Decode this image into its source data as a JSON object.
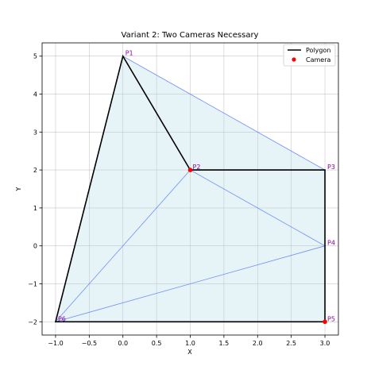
{
  "chart_data": {
    "type": "line",
    "title": "Variant 2: Two Cameras Necessary",
    "xlabel": "X",
    "ylabel": "Y",
    "xlim": [
      -1.2,
      3.2
    ],
    "ylim": [
      -2.35,
      5.35
    ],
    "grid": true,
    "xticks": [
      -1.0,
      -0.5,
      0.0,
      0.5,
      1.0,
      1.5,
      2.0,
      2.5,
      3.0
    ],
    "xtick_labels": [
      "−1.0",
      "−0.5",
      "0.0",
      "0.5",
      "1.0",
      "1.5",
      "2.0",
      "2.5",
      "3.0"
    ],
    "yticks": [
      -2,
      -1,
      0,
      1,
      2,
      3,
      4,
      5
    ],
    "ytick_labels": [
      "−2",
      "−1",
      "0",
      "1",
      "2",
      "3",
      "4",
      "5"
    ],
    "polygon": {
      "name": "Polygon",
      "color": "#000000",
      "points": [
        {
          "label": "P1",
          "x": 0,
          "y": 5
        },
        {
          "label": "P2",
          "x": 1,
          "y": 2
        },
        {
          "label": "P3",
          "x": 3,
          "y": 2
        },
        {
          "label": "P4",
          "x": 3,
          "y": 0
        },
        {
          "label": "P5",
          "x": 3,
          "y": -2
        },
        {
          "label": "P6",
          "x": -1,
          "y": -2
        }
      ]
    },
    "cameras": {
      "name": "Camera",
      "color": "#ff0000",
      "points": [
        {
          "x": 1,
          "y": 2
        },
        {
          "x": 3,
          "y": -2
        }
      ]
    },
    "visibility_fill_color": "#add8e6",
    "visibility_polygon": [
      {
        "x": 0,
        "y": 5
      },
      {
        "x": 3,
        "y": 2
      },
      {
        "x": 3,
        "y": -2
      },
      {
        "x": -1,
        "y": -2
      }
    ],
    "visibility_lines": [
      [
        {
          "x": 0,
          "y": 5
        },
        {
          "x": 3,
          "y": 2
        }
      ],
      [
        {
          "x": 1,
          "y": 2
        },
        {
          "x": -1,
          "y": -2
        }
      ],
      [
        {
          "x": 1,
          "y": 2
        },
        {
          "x": 3,
          "y": 0
        }
      ],
      [
        {
          "x": -1,
          "y": -2
        },
        {
          "x": 3,
          "y": 0
        }
      ]
    ],
    "legend_position": "top-right"
  }
}
